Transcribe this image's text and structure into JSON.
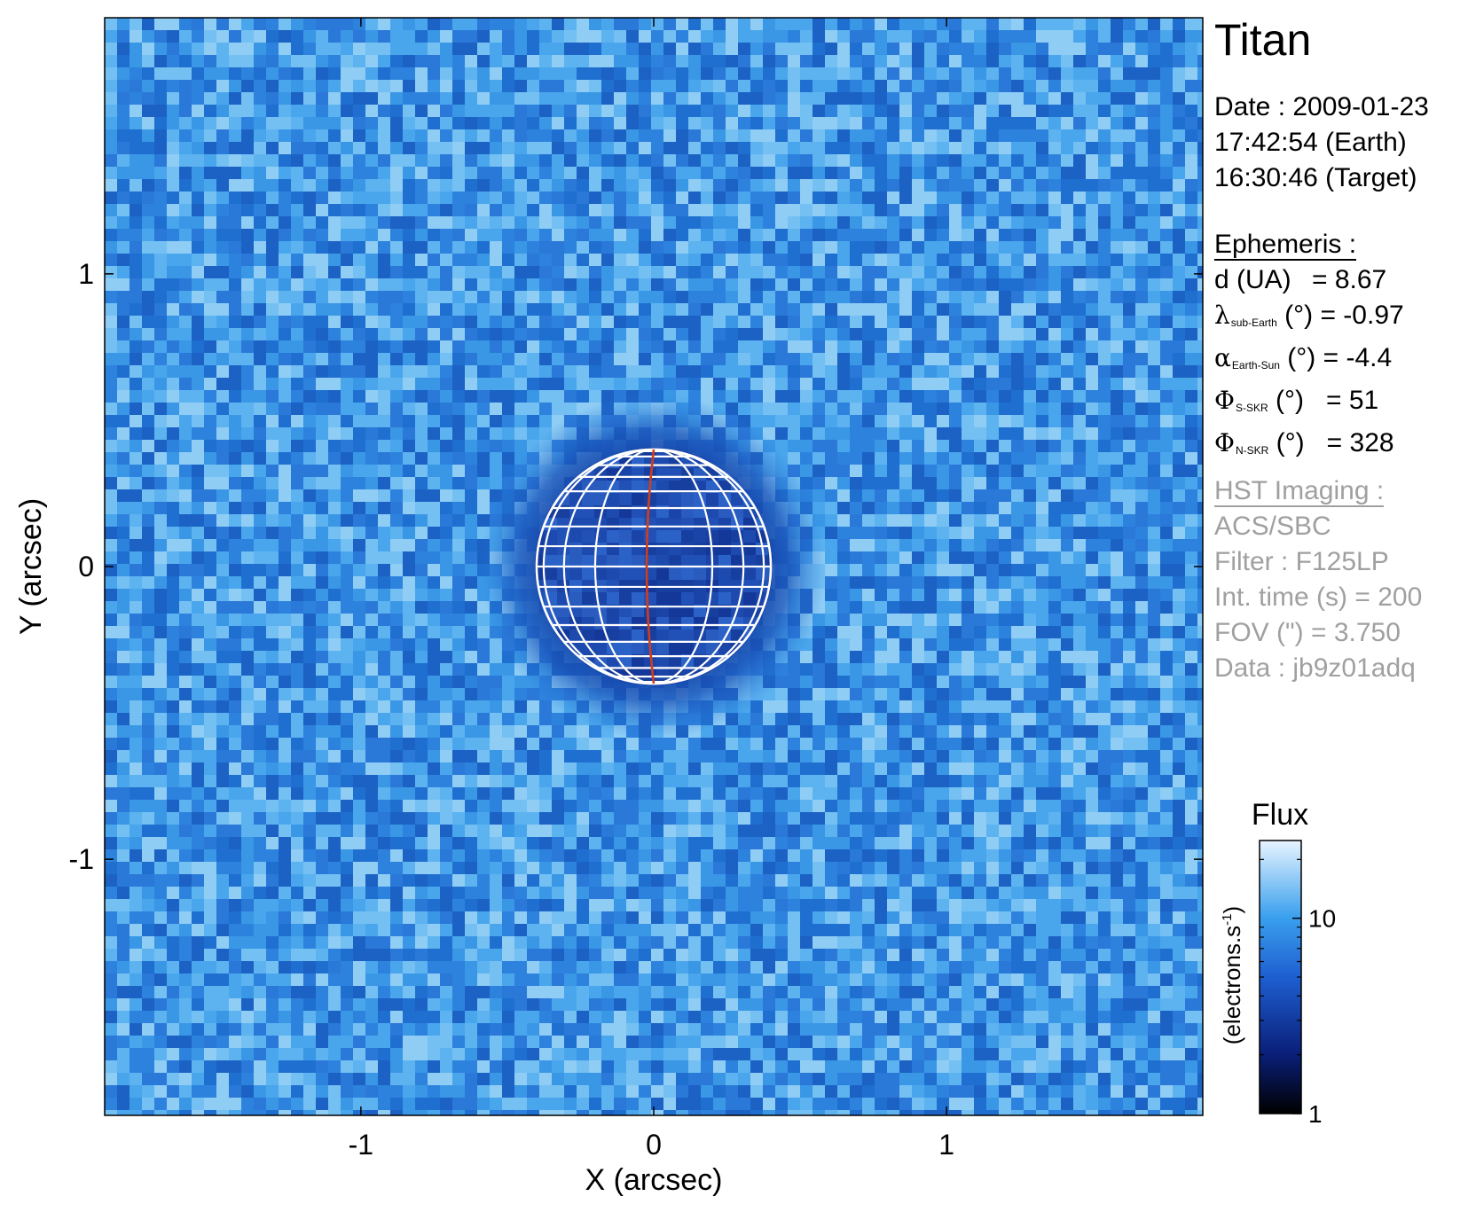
{
  "chart_data": {
    "type": "heatmap",
    "title": "Titan",
    "xlabel": "X (arcsec)",
    "ylabel": "Y (arcsec)",
    "xlim": [
      -1.875,
      1.875
    ],
    "ylim": [
      -1.875,
      1.875
    ],
    "xticks": [
      -1,
      0,
      1
    ],
    "yticks": [
      -1,
      0,
      1
    ],
    "xtick_labels": [
      "-1",
      "0",
      "1"
    ],
    "ytick_labels": [
      "-1",
      "0",
      "1"
    ],
    "disk": {
      "center": [
        0,
        0
      ],
      "radius_arcsec": 0.4,
      "grid": "latitude-longitude",
      "central_meridian_color": "#d23c1e",
      "grid_color": "#ffffff"
    },
    "colorbar": {
      "title": "Flux",
      "label": "(electrons.s",
      "label_sup": "-1",
      "label_close": ")",
      "scale": "log",
      "range": [
        1,
        25
      ],
      "ticks": [
        1,
        10
      ],
      "tick_labels": [
        "1",
        "10"
      ],
      "colors": [
        "#000000",
        "#0a1f7a",
        "#1e5fd0",
        "#3aa0ee",
        "#e8f4ff"
      ]
    }
  },
  "info": {
    "target": "Titan",
    "date_line": "Date : 2009-01-23",
    "earth_time": "17:42:54 (Earth)",
    "target_time": "16:30:46 (Target)",
    "ephemeris_header": "Ephemeris :",
    "distance": {
      "label": "d (UA)",
      "eq": "= 8.67"
    },
    "lambda": {
      "sym": "λ",
      "sub": "sub-Earth",
      "unit": "(°)",
      "eq": "= -0.97"
    },
    "alpha": {
      "sym": "α",
      "sub": "Earth-Sun",
      "unit": "(°)",
      "eq": "= -4.4"
    },
    "phi_s": {
      "sym": "Φ",
      "sub": "S-SKR",
      "unit": "(°)",
      "eq": "= 51"
    },
    "phi_n": {
      "sym": "Φ",
      "sub": "N-SKR",
      "unit": "(°)",
      "eq": "= 328"
    },
    "hst_header": "HST Imaging :",
    "instrument": "ACS/SBC",
    "filter": "Filter : F125LP",
    "int_time": "Int. time (s) = 200",
    "fov": "FOV (\") = 3.750",
    "data_id": "Data : jb9z01adq",
    "gray_color": "#a0a0a0"
  }
}
